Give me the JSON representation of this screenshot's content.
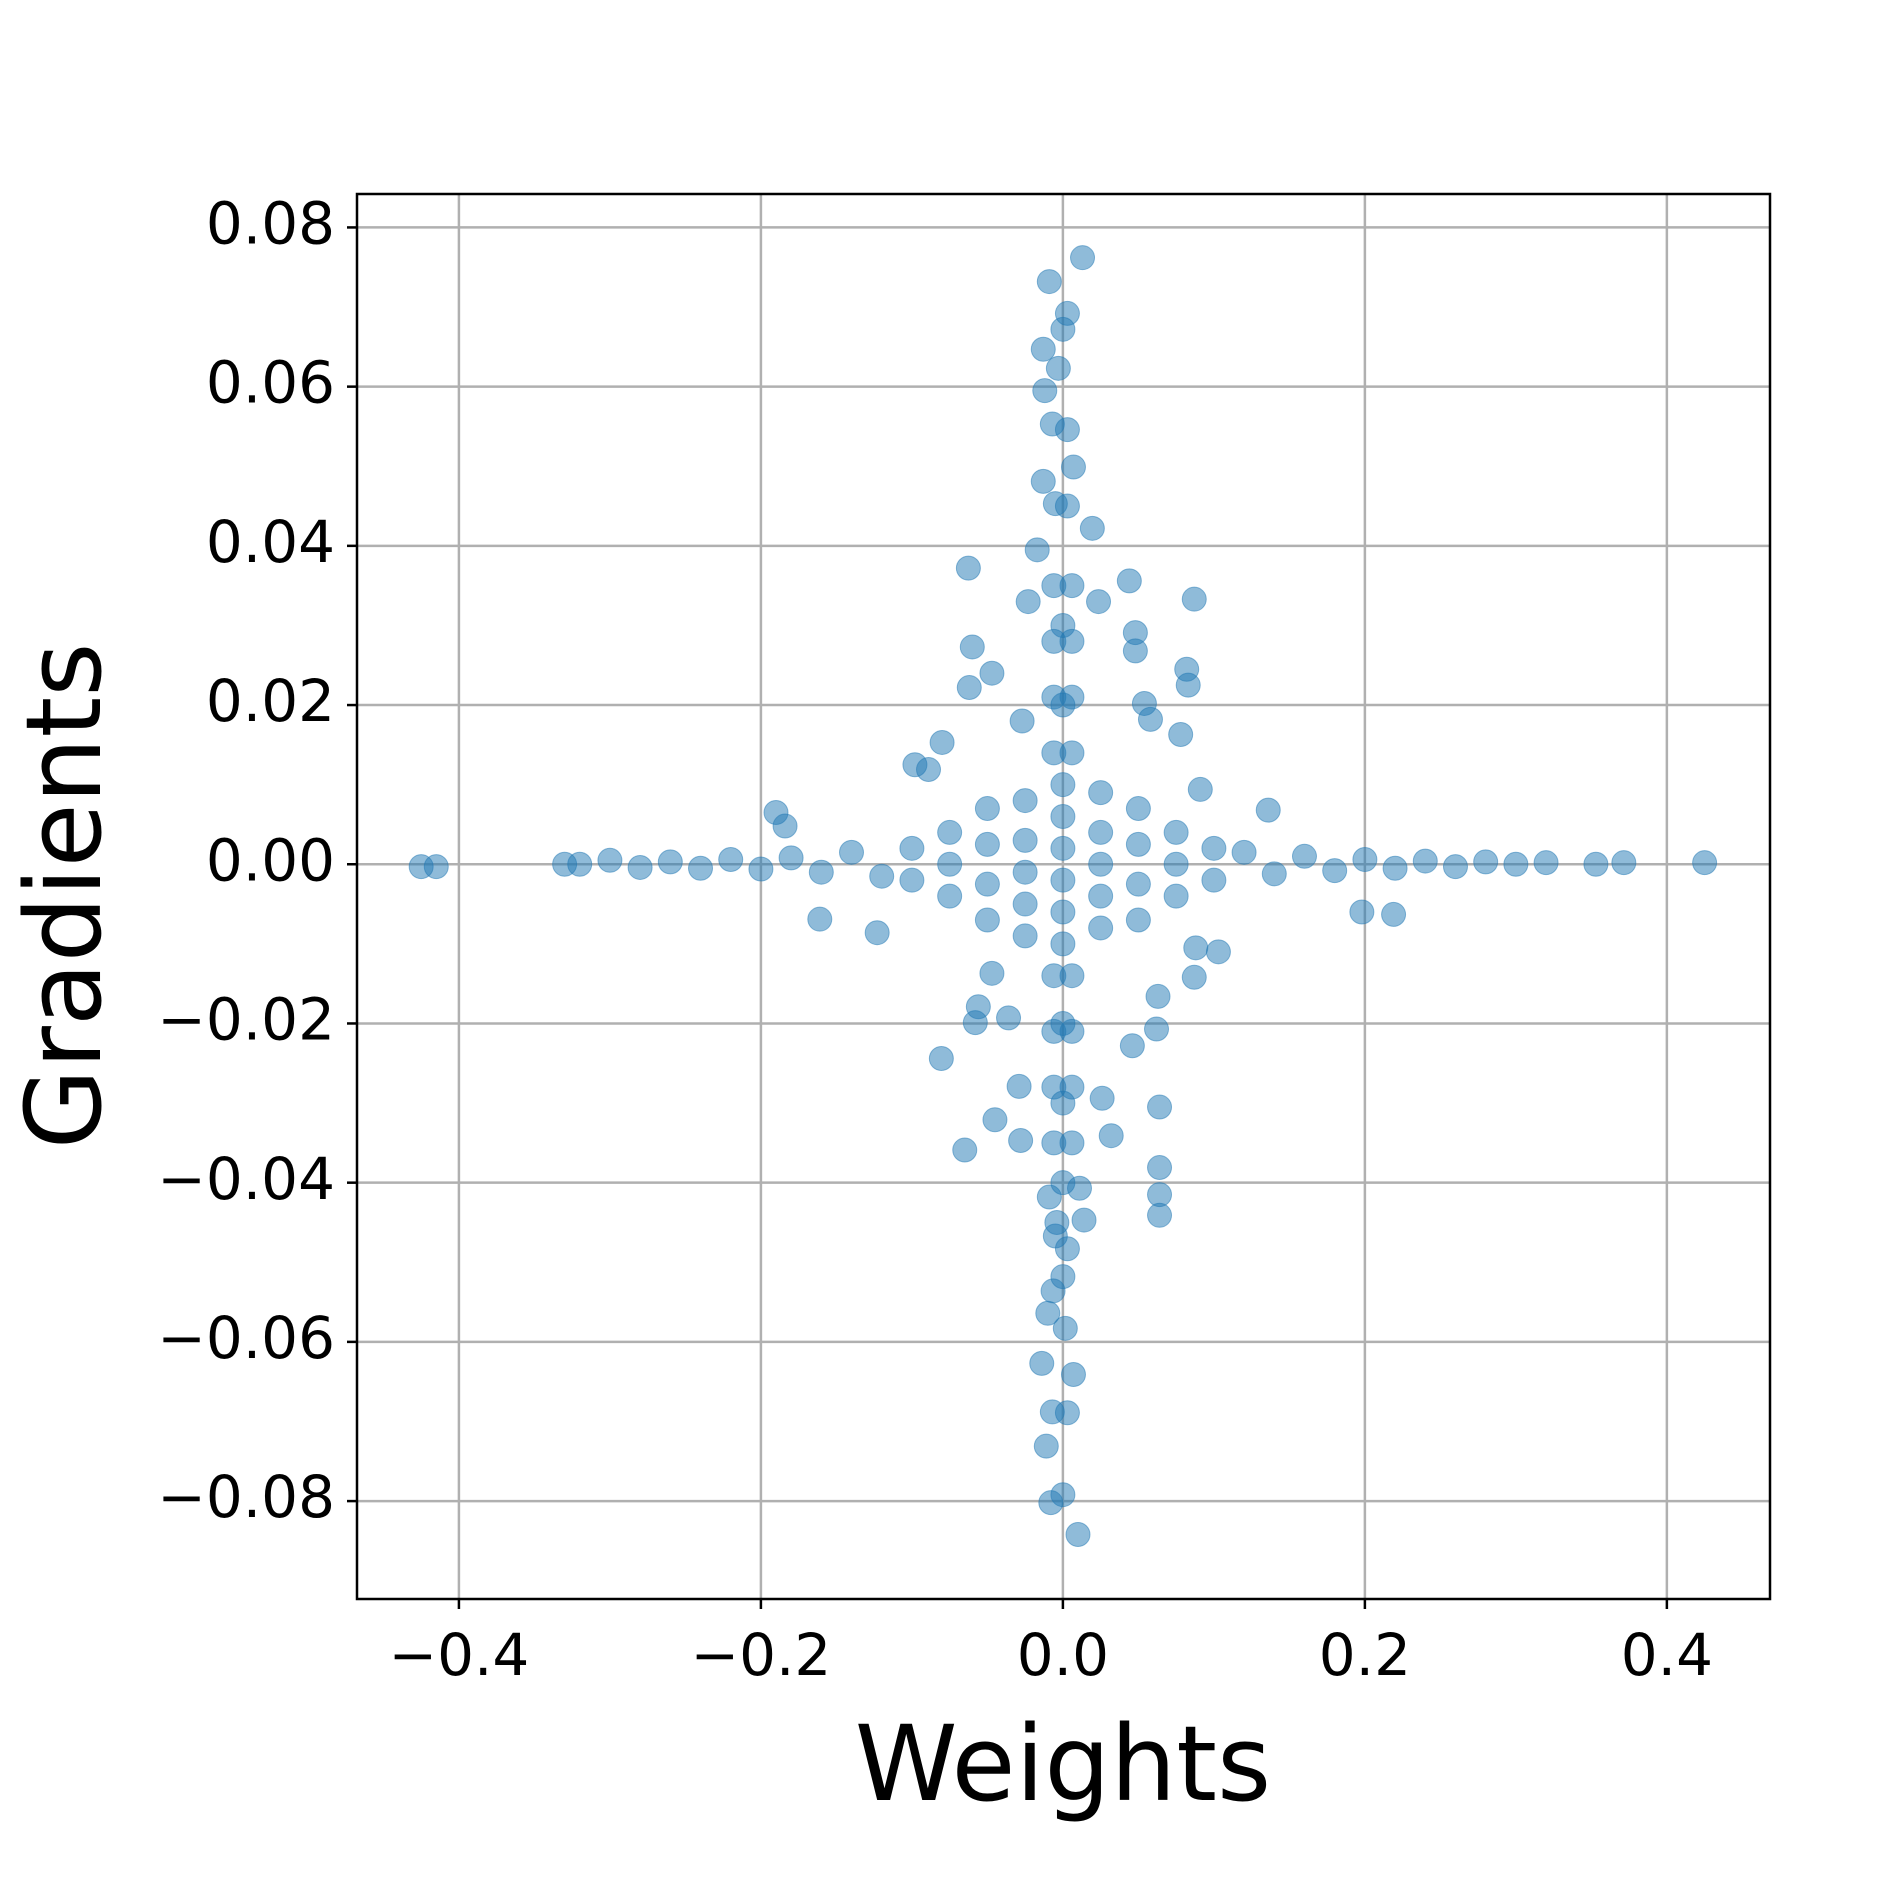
{
  "chart_data": {
    "type": "scatter",
    "xlabel": "Weights",
    "ylabel": "Gradients",
    "xlim": [
      -0.4675,
      0.4683
    ],
    "ylim": [
      -0.0923,
      0.0842
    ],
    "xticks": [
      {
        "value": -0.4,
        "label": "−0.4"
      },
      {
        "value": -0.2,
        "label": "−0.2"
      },
      {
        "value": 0,
        "label": "0.0"
      },
      0.2,
      0.4
    ],
    "yticks": [
      {
        "value": -0.08,
        "label": "−0.08"
      },
      {
        "value": -0.06,
        "label": "−0.06"
      },
      {
        "value": -0.04,
        "label": "−0.04"
      },
      {
        "value": -0.02,
        "label": "−0.02"
      },
      {
        "value": 0,
        "label": "0.00"
      },
      0.02,
      0.04,
      0.06,
      0.08
    ],
    "grid": true,
    "color": "#1f77b4",
    "opacity": 0.5,
    "x": [
      0.013,
      -0.009,
      0.003,
      0.0,
      -0.013,
      -0.003,
      -0.012,
      -0.007,
      0.003,
      0.007,
      -0.013,
      -0.005,
      0.0195,
      -0.017,
      -0.0626,
      0.044,
      0.087,
      -0.023,
      0.0236,
      0.048,
      -0.06,
      0.048,
      0.082,
      -0.062,
      -0.047,
      0.083,
      0.054,
      0.058,
      0.078,
      -0.08,
      -0.027,
      -0.098,
      -0.089,
      0.091,
      -0.19,
      -0.184,
      0.136,
      -0.425,
      -0.415,
      -0.33,
      0.32,
      0.353,
      0.3715,
      0.425,
      0.198,
      0.219,
      -0.161,
      -0.123,
      0.103,
      0.088,
      0.087,
      -0.047,
      0.063,
      -0.056,
      -0.058,
      -0.036,
      0.062,
      0.046,
      -0.0805,
      -0.029,
      0.026,
      0.064,
      -0.045,
      0.032,
      -0.028,
      -0.065,
      0.064,
      0.011,
      0.064,
      -0.009,
      0.064,
      0.014,
      -0.005,
      0.003,
      0.0,
      -0.0065,
      -0.01,
      0.0016,
      -0.014,
      0.007,
      -0.007,
      0.003,
      -0.011,
      0.0,
      -0.008,
      0.01,
      -0.32,
      -0.3,
      -0.28,
      -0.26,
      -0.24,
      -0.22,
      -0.2,
      -0.18,
      -0.16,
      -0.14,
      -0.12,
      0.12,
      0.14,
      0.16,
      0.18,
      0.2,
      0.22,
      0.24,
      0.26,
      0.28,
      0.3,
      -0.1,
      -0.1,
      -0.075,
      -0.075,
      -0.075,
      -0.05,
      -0.05,
      -0.05,
      -0.05,
      -0.025,
      -0.025,
      -0.025,
      -0.025,
      -0.025,
      0,
      0,
      0,
      0,
      0,
      0,
      0.025,
      0.025,
      0.025,
      0.025,
      0.025,
      0.05,
      0.05,
      0.05,
      0.05,
      0.075,
      0.075,
      0.075,
      0.1,
      0.1,
      -0.006,
      -0.006,
      -0.006,
      -0.006,
      -0.006,
      -0.006,
      -0.006,
      -0.006,
      0.006,
      0.006,
      0.006,
      0.006,
      0.006,
      0.006,
      0.006,
      0.006,
      0,
      0,
      0,
      0,
      0,
      0.003,
      -0.004
    ],
    "values": [
      0.0762,
      0.0732,
      0.0692,
      0.0672,
      0.0647,
      0.0623,
      0.0595,
      0.0553,
      0.0546,
      0.0499,
      0.0481,
      0.0453,
      0.0422,
      0.0395,
      0.0372,
      0.0356,
      0.0333,
      0.033,
      0.033,
      0.0291,
      0.0273,
      0.0268,
      0.0245,
      0.0222,
      0.024,
      0.0225,
      0.0202,
      0.0182,
      0.0163,
      0.0153,
      0.018,
      0.0125,
      0.0119,
      0.0094,
      0.0065,
      0.0048,
      0.0068,
      -0.0003,
      -0.0003,
      0,
      0.0002,
      0,
      0.0002,
      0.0002,
      -0.006,
      -0.0063,
      -0.0069,
      -0.0086,
      -0.011,
      -0.0105,
      -0.0142,
      -0.0137,
      -0.0166,
      -0.0179,
      -0.0199,
      -0.0193,
      -0.0207,
      -0.0228,
      -0.0244,
      -0.0279,
      -0.0294,
      -0.0305,
      -0.0321,
      -0.0341,
      -0.0347,
      -0.0359,
      -0.0381,
      -0.0407,
      -0.0415,
      -0.0418,
      -0.0441,
      -0.0447,
      -0.0467,
      -0.0483,
      -0.0518,
      -0.0536,
      -0.0564,
      -0.0583,
      -0.0627,
      -0.0641,
      -0.0688,
      -0.0689,
      -0.0731,
      -0.0792,
      -0.0802,
      -0.0842,
      0,
      0.0005,
      -0.0004,
      0.0003,
      -0.0005,
      0.0006,
      -0.0006,
      0.0008,
      -0.001,
      0.0015,
      -0.0015,
      0.0015,
      -0.0012,
      0.001,
      -0.0008,
      0.0006,
      -0.0005,
      0.0004,
      -0.0003,
      0.0003,
      0,
      -0.002,
      0.002,
      -0.004,
      0,
      0.004,
      -0.007,
      -0.0025,
      0.0025,
      0.007,
      -0.009,
      -0.005,
      -0.001,
      0.003,
      0.008,
      -0.01,
      -0.006,
      -0.002,
      0.002,
      0.006,
      0.01,
      -0.008,
      -0.004,
      0,
      0.004,
      0.009,
      -0.007,
      -0.0025,
      0.0025,
      0.007,
      -0.004,
      0,
      0.004,
      -0.002,
      0.002,
      0.035,
      0.028,
      0.021,
      0.014,
      -0.014,
      -0.021,
      -0.028,
      -0.035,
      0.035,
      0.028,
      0.021,
      0.014,
      -0.014,
      -0.021,
      -0.028,
      -0.035,
      0.03,
      0.02,
      -0.02,
      -0.03,
      -0.04,
      0.045,
      -0.045
    ]
  }
}
